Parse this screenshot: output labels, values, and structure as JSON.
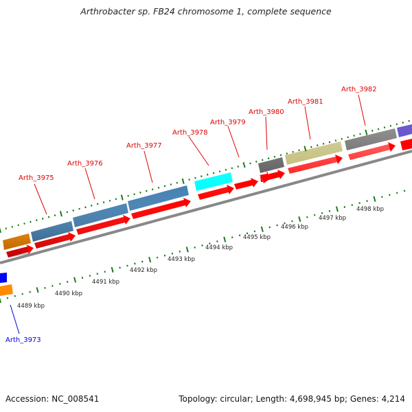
{
  "title": "Arthrobacter sp. FB24 chromosome 1, complete sequence",
  "footer": {
    "accession": "Accession: NC_008541",
    "summary": "Topology: circular; Length: 4,698,945 bp; Genes: 4,214"
  },
  "ruler_labels": [
    "4489 kbp",
    "4490 kbp",
    "4491 kbp",
    "4492 kbp",
    "4493 kbp",
    "4494 kbp",
    "4495 kbp",
    "4496 kbp",
    "4497 kbp",
    "4498 kbp"
  ],
  "gene_labels": [
    {
      "text": "Arth_3973",
      "color": "#0000cc"
    },
    {
      "text": "Arth_3975",
      "color": "#dd0000"
    },
    {
      "text": "Arth_3976",
      "color": "#dd0000"
    },
    {
      "text": "Arth_3977",
      "color": "#dd0000"
    },
    {
      "text": "Arth_3978",
      "color": "#dd0000"
    },
    {
      "text": "Arth_3979",
      "color": "#dd0000"
    },
    {
      "text": "Arth_3980",
      "color": "#dd0000"
    },
    {
      "text": "Arth_3981",
      "color": "#dd0000"
    },
    {
      "text": "Arth_3982",
      "color": "#dd0000"
    }
  ],
  "colors": {
    "cds": "#ff0000",
    "orange": "#ff8c00",
    "steelblue": "#4682b4",
    "cyan": "#00ffff",
    "gray": "#555555",
    "khaki": "#bdb76b",
    "slateblue": "#6a5acd",
    "blue": "#0000ff",
    "backbone": "#888888",
    "ticks": "#1a7a1a"
  }
}
